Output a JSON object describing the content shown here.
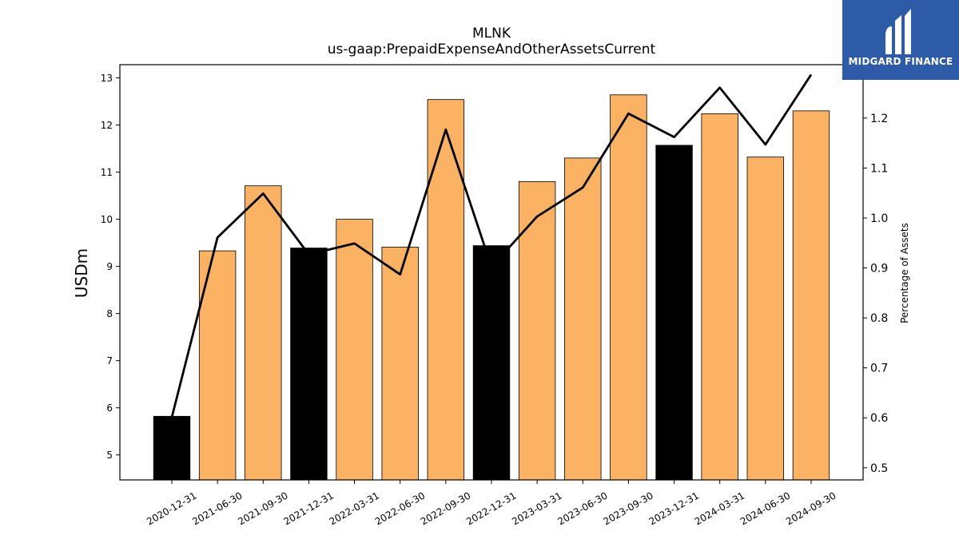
{
  "title": "MLNK",
  "subtitle": "us-gaap:PrepaidExpenseAndOtherAssetsCurrent",
  "logo": {
    "text": "MIDGARD FINANCE",
    "bg_color": "#2e5ba8"
  },
  "colors": {
    "bar_fy": "#000000",
    "bar_q": "#fbb262",
    "line": "#000000"
  },
  "chart_data": {
    "type": "bar",
    "categories": [
      "2020-12-31",
      "2021-06-30",
      "2021-09-30",
      "2021-12-31",
      "2022-03-31",
      "2022-06-30",
      "2022-09-30",
      "2022-12-31",
      "2023-03-31",
      "2023-06-30",
      "2023-09-30",
      "2023-12-31",
      "2024-03-31",
      "2024-06-30",
      "2024-09-30"
    ],
    "series": [
      {
        "values": [
          5.82,
          9.33,
          10.71,
          9.39,
          10.0,
          9.41,
          12.54,
          9.44,
          10.8,
          11.3,
          12.64,
          11.57,
          12.24,
          11.32,
          12.3
        ]
      },
      {
        "values": [
          0.601,
          0.961,
          1.049,
          0.927,
          0.949,
          0.887,
          1.177,
          0.902,
          1.003,
          1.061,
          1.209,
          1.162,
          1.261,
          1.147,
          1.287
        ]
      }
    ],
    "bar_highlight": [
      true,
      false,
      false,
      true,
      false,
      false,
      false,
      true,
      false,
      false,
      false,
      true,
      false,
      false,
      false
    ],
    "ylabel": "USDm",
    "ylabel_right": "Percentage of Assets",
    "ylim": [
      4.47,
      13.28
    ],
    "ylim_right": [
      0.4757,
      1.3069
    ],
    "yticks": [
      5,
      6,
      7,
      8,
      9,
      10,
      11,
      12,
      13
    ],
    "yticks_right": [
      0.5,
      0.6,
      0.7,
      0.8,
      0.9,
      1.0,
      1.1,
      1.2
    ],
    "grid": false
  }
}
